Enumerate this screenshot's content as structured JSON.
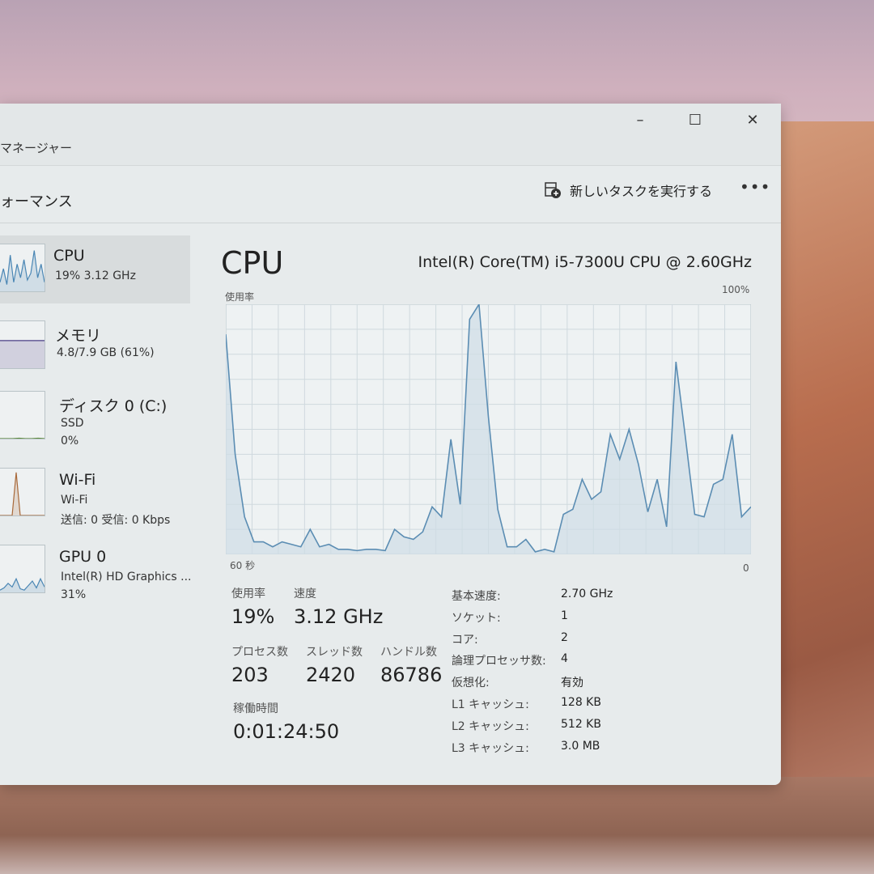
{
  "window": {
    "title": "マネージャー",
    "minimize": "–",
    "maximize": "☐",
    "close": "✕"
  },
  "toolbar": {
    "page_title": "ォーマンス",
    "run_task_label": "新しいタスクを実行する",
    "run_task_icon": "run-task-icon",
    "more_label": "•••"
  },
  "sidebar": {
    "items": [
      {
        "name": "CPU",
        "line1": "19% 3.12 GHz",
        "line2": "",
        "color": "#4a86b4",
        "spark": [
          20,
          50,
          15,
          80,
          20,
          60,
          30,
          70,
          25,
          40,
          90,
          30,
          60,
          20
        ]
      },
      {
        "name": "メモリ",
        "line1": "4.8/7.9 GB (61%)",
        "line2": "",
        "color": "#4b3f86",
        "spark": [
          61,
          61,
          61,
          61,
          61,
          61,
          61,
          61
        ]
      },
      {
        "name": "ディスク 0 (C:)",
        "line1": "SSD",
        "line2": "0%",
        "color": "#5b8a3a",
        "spark": [
          0,
          0,
          0,
          1,
          0,
          0,
          1,
          0
        ]
      },
      {
        "name": "Wi-Fi",
        "line1": "Wi-Fi",
        "line2": "送信: 0 受信: 0 Kbps",
        "color": "#a8693a",
        "spark": [
          0,
          0,
          0,
          0,
          95,
          0,
          0,
          0,
          0,
          0,
          0,
          0
        ]
      },
      {
        "name": "GPU 0",
        "line1": "Intel(R) HD Graphics ...",
        "line2": "31%",
        "color": "#4a86b4",
        "spark": [
          5,
          10,
          20,
          12,
          30,
          8,
          5,
          15,
          25,
          10,
          30,
          12
        ]
      }
    ]
  },
  "main": {
    "title": "CPU",
    "model": "Intel(R) Core(TM) i5-7300U CPU @ 2.60GHz",
    "y_label": "使用率",
    "y_max_label": "100%",
    "x_left_label": "60 秒",
    "x_right_label": "0",
    "stats": {
      "usage_label": "使用率",
      "usage": "19%",
      "speed_label": "速度",
      "speed": "3.12 GHz",
      "processes_label": "プロセス数",
      "processes": "203",
      "threads_label": "スレッド数",
      "threads": "2420",
      "handles_label": "ハンドル数",
      "handles": "86786",
      "uptime_label": "稼働時間",
      "uptime": "0:01:24:50"
    },
    "specs": [
      {
        "k": "基本速度:",
        "v": "2.70 GHz"
      },
      {
        "k": "ソケット:",
        "v": "1"
      },
      {
        "k": "コア:",
        "v": "2"
      },
      {
        "k": "論理プロセッサ数:",
        "v": "4"
      },
      {
        "k": "仮想化:",
        "v": "有効"
      },
      {
        "k": "L1 キャッシュ:",
        "v": "128 KB"
      },
      {
        "k": "L2 キャッシュ:",
        "v": "512 KB"
      },
      {
        "k": "L3 キャッシュ:",
        "v": "3.0 MB"
      }
    ]
  },
  "chart_data": {
    "type": "area",
    "ylabel": "使用率",
    "ylim": [
      0,
      100
    ],
    "xlim": [
      60,
      0
    ],
    "grid": true,
    "line_color": "#5b8db3",
    "fill_color": "#cfdde6",
    "values": [
      88,
      40,
      15,
      5,
      5,
      3,
      5,
      4,
      3,
      10,
      3,
      4,
      2,
      2,
      1.5,
      2,
      2,
      1.5,
      10,
      7,
      6,
      9,
      19,
      15,
      46,
      20,
      94,
      100,
      55,
      18,
      3,
      3,
      6,
      1,
      2,
      1,
      16,
      18,
      30,
      22,
      25,
      48,
      38,
      50,
      36,
      17,
      30,
      11,
      77,
      47,
      16,
      15,
      28,
      30,
      48,
      15,
      19
    ]
  }
}
